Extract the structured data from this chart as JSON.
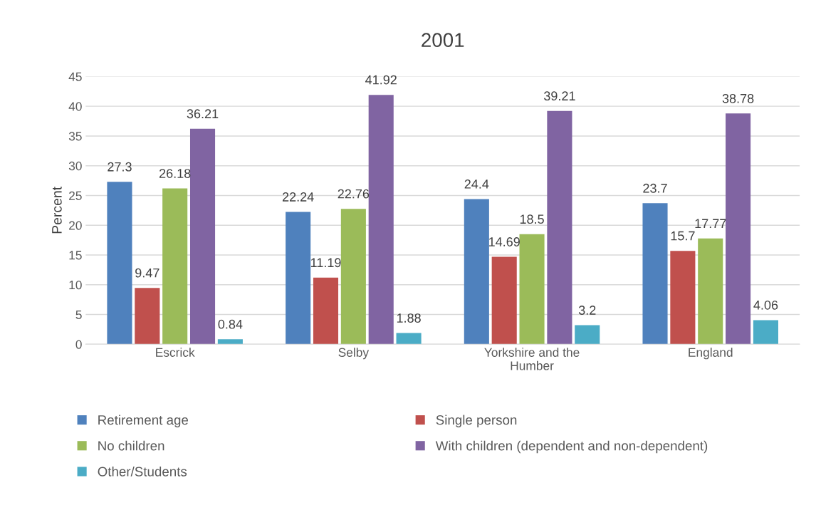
{
  "chart_data": {
    "type": "bar",
    "title": "2001",
    "ylabel": "Percent",
    "categories": [
      "Escrick",
      "Selby",
      "Yorkshire and the\nHumber",
      "England"
    ],
    "series": [
      {
        "name": "Retirement age",
        "color": "#4f81bd",
        "values": [
          27.3,
          22.24,
          24.4,
          23.7
        ]
      },
      {
        "name": "Single person",
        "color": "#c0504d",
        "values": [
          9.47,
          11.19,
          14.69,
          15.7
        ]
      },
      {
        "name": "No children",
        "color": "#9bbb59",
        "values": [
          26.18,
          22.76,
          18.5,
          17.77
        ]
      },
      {
        "name": "With children (dependent and non-dependent)",
        "color": "#8064a2",
        "values": [
          36.21,
          41.92,
          39.21,
          38.78
        ]
      },
      {
        "name": "Other/Students",
        "color": "#4bacc6",
        "values": [
          0.84,
          1.88,
          3.2,
          4.06
        ]
      }
    ],
    "ylim": [
      0,
      45
    ],
    "yticks": [
      0,
      5,
      10,
      15,
      20,
      25,
      30,
      35,
      40,
      45
    ],
    "grid": "y",
    "legend": "bottom",
    "data_labels": true
  }
}
